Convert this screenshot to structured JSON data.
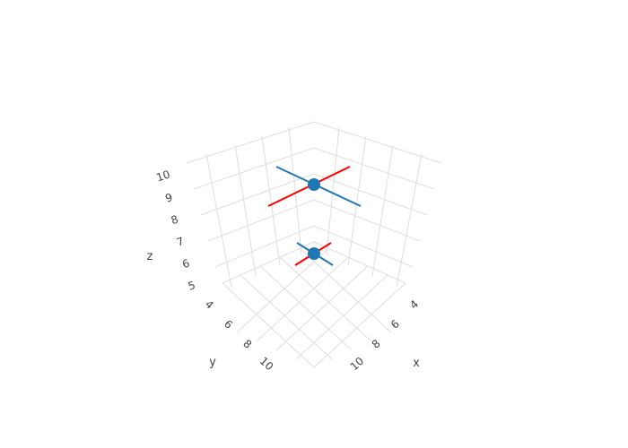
{
  "chart_data": {
    "type": "scatter3d",
    "axes": {
      "x": {
        "title": "x",
        "range": [
          3,
          11
        ],
        "ticks": [
          4,
          6,
          8,
          10
        ],
        "grid": true
      },
      "y": {
        "title": "y",
        "range": [
          3,
          11
        ],
        "ticks": [
          4,
          6,
          8,
          10
        ],
        "grid": true
      },
      "z": {
        "title": "z",
        "range": [
          4.5,
          10.5
        ],
        "ticks": [
          5,
          6,
          7,
          8,
          9,
          10
        ],
        "grid": true
      }
    },
    "points": [
      {
        "x": 10,
        "y": 10,
        "z": 10
      },
      {
        "x": 4,
        "y": 4,
        "z": 4.7
      }
    ],
    "error_bars": {
      "x": {
        "color": "#ff0000",
        "values": [
          1.6,
          0.6
        ]
      },
      "y": {
        "color": "#1f77b4",
        "values": [
          1.6,
          0.6
        ]
      }
    },
    "marker_color": "#1f77b4",
    "legend": false
  }
}
